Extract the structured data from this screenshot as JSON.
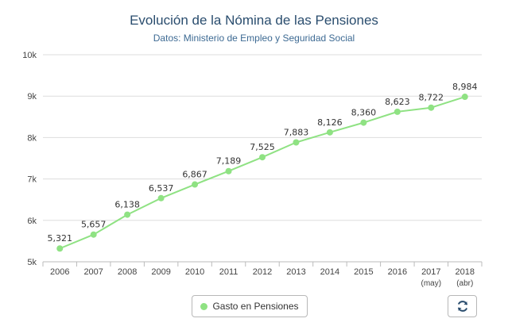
{
  "title": "Evolución de la Nómina de las Pensiones",
  "subtitle": "Datos: Ministerio de Empleo y Seguridad Social",
  "legend": {
    "label": "Gasto en Pensiones"
  },
  "refresh_icon": "refresh-icon",
  "colors": {
    "series": "#8fe283",
    "title": "#2a4d6e",
    "subtitle": "#3d6a93",
    "grid": "#dddddd",
    "text": "#444444"
  },
  "chart_data": {
    "type": "line",
    "title": "Evolución de la Nómina de las Pensiones",
    "subtitle": "Datos: Ministerio de Empleo y Seguridad Social",
    "categories": [
      [
        "2006"
      ],
      [
        "2007"
      ],
      [
        "2008"
      ],
      [
        "2009"
      ],
      [
        "2010"
      ],
      [
        "2011"
      ],
      [
        "2012"
      ],
      [
        "2013"
      ],
      [
        "2014"
      ],
      [
        "2015"
      ],
      [
        "2016"
      ],
      [
        "2017",
        "(may)"
      ],
      [
        "2018",
        "(abr)"
      ]
    ],
    "series": [
      {
        "name": "Gasto en Pensiones",
        "values": [
          5321,
          5657,
          6138,
          6537,
          6867,
          7189,
          7525,
          7883,
          8126,
          8360,
          8623,
          8722,
          8984
        ],
        "labels": [
          "5,321",
          "5,657",
          "6,138",
          "6,537",
          "6,867",
          "7,189",
          "7,525",
          "7,883",
          "8,126",
          "8,360",
          "8,623",
          "8,722",
          "8,984"
        ]
      }
    ],
    "ylim": [
      5000,
      10000
    ],
    "yticks": [
      5000,
      6000,
      7000,
      8000,
      9000,
      10000
    ],
    "ytick_labels": [
      "5k",
      "6k",
      "7k",
      "8k",
      "9k",
      "10k"
    ],
    "grid": true,
    "legend_position": "bottom-center"
  }
}
